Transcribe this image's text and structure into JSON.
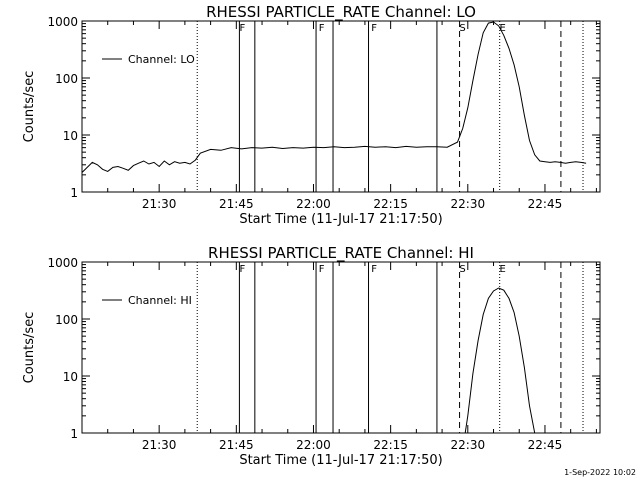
{
  "footer": {
    "date_stamp": "1-Sep-2022 10:02"
  },
  "x_ticks": [
    "21:30",
    "21:45",
    "22:00",
    "22:15",
    "22:30",
    "22:45"
  ],
  "x_tick_minutes": [
    0,
    15,
    30,
    45,
    60,
    75
  ],
  "y_tick_labels": [
    "1000",
    "100",
    "10",
    "1"
  ],
  "y_tick_values": [
    1000,
    100,
    10,
    1
  ],
  "x_start_minutes": -15,
  "x_end_minutes": 85.7,
  "flags": [
    {
      "label": "F",
      "minute": 15.6
    },
    {
      "label": "F",
      "minute": 31.0
    },
    {
      "label": "F",
      "minute": 41.2
    },
    {
      "label": "S",
      "minute": 58.4
    },
    {
      "label": "E",
      "minute": 66.2
    }
  ],
  "markers": {
    "solid": [
      15.6,
      18.6,
      30.5,
      33.8,
      40.7,
      54.0
    ],
    "dashed": [
      58.4,
      78.1
    ],
    "dotted": [
      7.4,
      66.2,
      82.4
    ]
  },
  "chart_data": [
    {
      "type": "line",
      "title": "RHESSI PARTICLE_RATE Channel: LO",
      "xlabel": "Start Time (11-Jul-17 21:17:50)",
      "ylabel": "Counts/sec",
      "yscale": "log",
      "ylim": [
        1,
        1000
      ],
      "legend": "top-left",
      "series": [
        {
          "name": "Channel: LO",
          "x_minutes": [
            -15,
            -13,
            -12,
            -11,
            -10,
            -9,
            -8,
            -7,
            -6,
            -5,
            -4,
            -3,
            -2,
            -1,
            0,
            1,
            2,
            3,
            4,
            5,
            6,
            7,
            8,
            10,
            12,
            14,
            16,
            18,
            20,
            22,
            24,
            26,
            28,
            30,
            32,
            34,
            36,
            38,
            40,
            42,
            44,
            46,
            48,
            50,
            52,
            54,
            56,
            58,
            59,
            60,
            61,
            62,
            63,
            64,
            65,
            66,
            67,
            68,
            69,
            70,
            71,
            72,
            73,
            74,
            75,
            76,
            77,
            78,
            79,
            80,
            81,
            82,
            83
          ],
          "y": [
            2.2,
            3.3,
            3.0,
            2.5,
            2.3,
            2.7,
            2.8,
            2.6,
            2.4,
            2.9,
            3.2,
            3.5,
            3.1,
            3.3,
            2.8,
            3.5,
            3.0,
            3.4,
            3.2,
            3.3,
            3.1,
            3.6,
            4.8,
            5.6,
            5.4,
            6.0,
            5.7,
            6.0,
            5.9,
            6.1,
            5.8,
            6.0,
            5.9,
            6.1,
            6.0,
            6.2,
            6.0,
            6.1,
            6.3,
            6.1,
            6.2,
            6.0,
            6.3,
            6.1,
            6.2,
            6.2,
            6.1,
            7.5,
            13,
            30,
            90,
            260,
            620,
            920,
            960,
            820,
            560,
            330,
            170,
            70,
            22,
            8,
            4.5,
            3.5,
            3.4,
            3.3,
            3.4,
            3.3,
            3.2,
            3.3,
            3.4,
            3.3,
            3.2
          ]
        }
      ]
    },
    {
      "type": "line",
      "title": "RHESSI PARTICLE_RATE Channel: HI",
      "xlabel": "Start Time (11-Jul-17 21:17:50)",
      "ylabel": "Counts/sec",
      "yscale": "log",
      "ylim": [
        1,
        1000
      ],
      "legend": "top-left",
      "series": [
        {
          "name": "Channel: HI",
          "x_minutes": [
            59.5,
            60,
            61,
            62,
            63,
            64,
            65,
            66,
            67,
            68,
            69,
            70,
            71,
            72,
            73
          ],
          "y": [
            1,
            2,
            11,
            42,
            120,
            230,
            310,
            350,
            320,
            230,
            130,
            50,
            14,
            3,
            1
          ]
        }
      ]
    }
  ]
}
